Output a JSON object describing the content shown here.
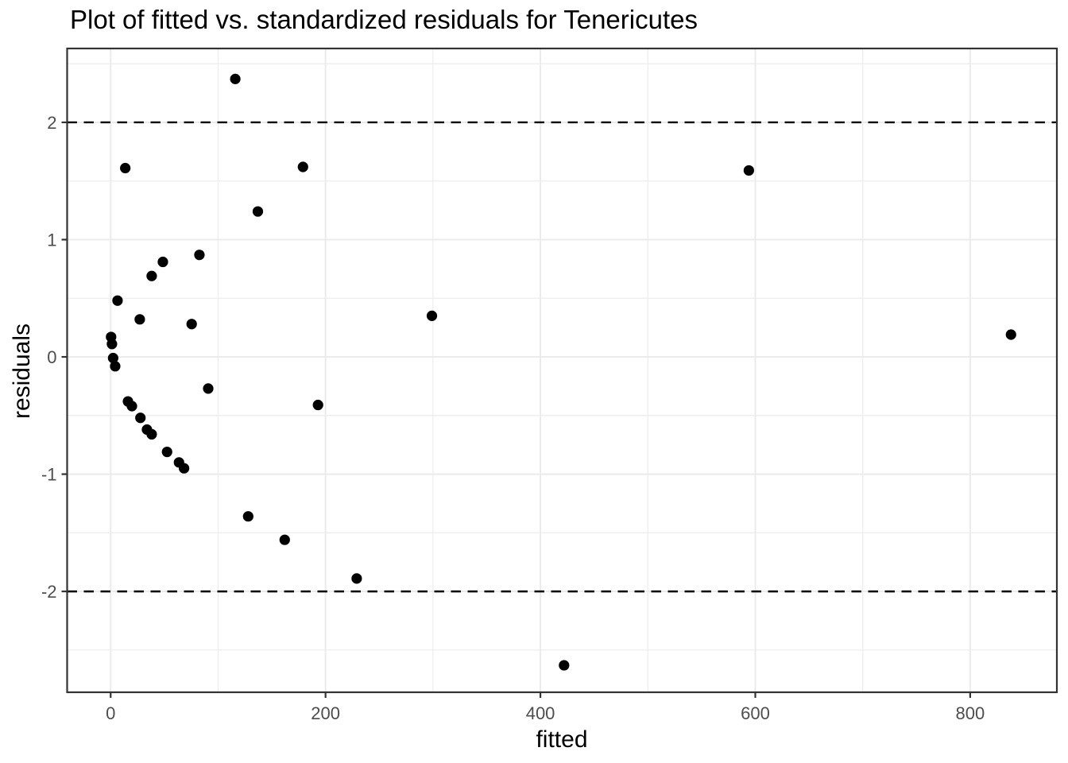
{
  "chart_data": {
    "type": "scatter",
    "title": "Plot of fitted vs. standardized residuals for Tenericutes",
    "xlabel": "fitted",
    "ylabel": "residuals",
    "xlim": [
      -40.5,
      880.7
    ],
    "ylim": [
      -2.86,
      2.63
    ],
    "x_ticks": [
      0,
      200,
      400,
      600,
      800
    ],
    "x_minor_ticks": [
      100,
      300,
      500,
      700
    ],
    "y_ticks": [
      -2,
      -1,
      0,
      1,
      2
    ],
    "y_minor_ticks": [
      -2.5,
      -1.5,
      -0.5,
      0.5,
      1.5,
      2.5
    ],
    "grid": true,
    "legend": false,
    "reference_lines": {
      "y_values": [
        2,
        -2
      ],
      "style": "dashed"
    },
    "points": [
      [
        116,
        2.37
      ],
      [
        13.6,
        1.61
      ],
      [
        179,
        1.62
      ],
      [
        594,
        1.59
      ],
      [
        137,
        1.24
      ],
      [
        82.6,
        0.87
      ],
      [
        48.6,
        0.81
      ],
      [
        38.2,
        0.69
      ],
      [
        6.4,
        0.48
      ],
      [
        299,
        0.35
      ],
      [
        27.1,
        0.32
      ],
      [
        75.4,
        0.28
      ],
      [
        838,
        0.19
      ],
      [
        0.4,
        0.17
      ],
      [
        1.2,
        0.11
      ],
      [
        2.3,
        -0.01
      ],
      [
        4.2,
        -0.08
      ],
      [
        90.8,
        -0.27
      ],
      [
        16.1,
        -0.38
      ],
      [
        19.8,
        -0.42
      ],
      [
        193,
        -0.41
      ],
      [
        27.7,
        -0.52
      ],
      [
        33.8,
        -0.62
      ],
      [
        38.2,
        -0.66
      ],
      [
        52.5,
        -0.81
      ],
      [
        63.6,
        -0.9
      ],
      [
        68.3,
        -0.95
      ],
      [
        128,
        -1.36
      ],
      [
        162,
        -1.56
      ],
      [
        229,
        -1.89
      ],
      [
        422,
        -2.63
      ]
    ]
  },
  "colors": {
    "background": "#FFFFFF",
    "panel_background": "#FFFFFF",
    "panel_border": "#333333",
    "gridline_major": "#EBEBEB",
    "gridline_minor": "#EDEDED",
    "tick_mark": "#333333",
    "tick_label": "#4D4D4D",
    "point": "#000000",
    "reference_line": "#000000",
    "title_text": "#000000"
  }
}
